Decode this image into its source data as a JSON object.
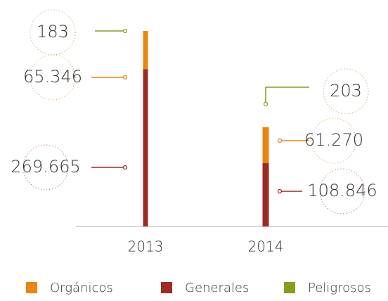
{
  "chart_data": {
    "type": "bar",
    "stacked": true,
    "categories": [
      "2013",
      "2014"
    ],
    "series": [
      {
        "name": "Orgánicos",
        "color": "#e8860f",
        "values": [
          65346,
          61270
        ],
        "value_labels": [
          "65.346",
          "61.270"
        ]
      },
      {
        "name": "Generales",
        "color": "#9e2a23",
        "values": [
          269665,
          108846
        ],
        "value_labels": [
          "269.665",
          "108.846"
        ]
      },
      {
        "name": "Peligrosos",
        "color": "#8a9a1a",
        "values": [
          183,
          203
        ],
        "value_labels": [
          "183",
          "203"
        ]
      }
    ],
    "legend": "bottom"
  }
}
